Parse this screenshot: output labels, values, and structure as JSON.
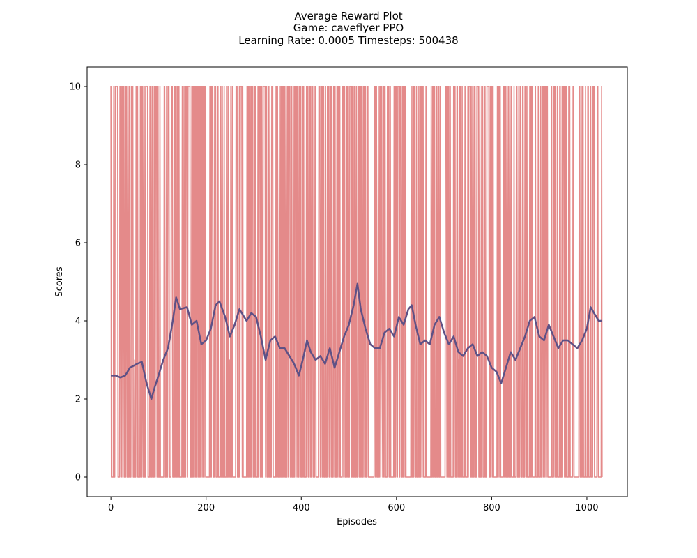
{
  "chart_data": {
    "type": "line",
    "title": "Average Reward Plot",
    "subtitle_lines": [
      "Game: caveflyer PPO",
      "Learning Rate: 0.0005 Timesteps: 500438"
    ],
    "xlabel": "Episodes",
    "ylabel": "Scores",
    "xlim": [
      -50,
      1085
    ],
    "ylim": [
      -0.5,
      10.5
    ],
    "xticks": [
      0,
      200,
      400,
      600,
      800,
      1000
    ],
    "yticks": [
      0,
      2,
      4,
      6,
      8,
      10
    ],
    "grid": false,
    "legend": "none",
    "episodes": 1033,
    "colors": {
      "raw": "#e48a8a",
      "average": "#2f6aaa",
      "overlay": "#6d4a7a"
    },
    "series": [
      {
        "role": "raw-episode-scores",
        "values_description_free": true,
        "levels": [
          0,
          3,
          10
        ],
        "approx_fraction_max": 0.38
      },
      {
        "role": "moving-average",
        "points": [
          [
            0,
            2.6
          ],
          [
            10,
            2.6
          ],
          [
            20,
            2.55
          ],
          [
            30,
            2.6
          ],
          [
            40,
            2.8
          ],
          [
            55,
            2.9
          ],
          [
            65,
            2.95
          ],
          [
            75,
            2.4
          ],
          [
            85,
            2.0
          ],
          [
            92,
            2.3
          ],
          [
            100,
            2.6
          ],
          [
            110,
            3.0
          ],
          [
            120,
            3.3
          ],
          [
            130,
            4.0
          ],
          [
            137,
            4.6
          ],
          [
            145,
            4.3
          ],
          [
            160,
            4.35
          ],
          [
            170,
            3.9
          ],
          [
            180,
            4.0
          ],
          [
            190,
            3.4
          ],
          [
            200,
            3.5
          ],
          [
            210,
            3.8
          ],
          [
            220,
            4.4
          ],
          [
            228,
            4.5
          ],
          [
            240,
            4.1
          ],
          [
            250,
            3.6
          ],
          [
            260,
            3.9
          ],
          [
            270,
            4.3
          ],
          [
            285,
            4.0
          ],
          [
            295,
            4.2
          ],
          [
            305,
            4.1
          ],
          [
            315,
            3.6
          ],
          [
            325,
            3.0
          ],
          [
            335,
            3.5
          ],
          [
            345,
            3.6
          ],
          [
            355,
            3.3
          ],
          [
            365,
            3.3
          ],
          [
            375,
            3.1
          ],
          [
            385,
            2.9
          ],
          [
            395,
            2.6
          ],
          [
            405,
            3.1
          ],
          [
            412,
            3.5
          ],
          [
            420,
            3.2
          ],
          [
            430,
            3.0
          ],
          [
            440,
            3.1
          ],
          [
            450,
            2.9
          ],
          [
            460,
            3.3
          ],
          [
            470,
            2.8
          ],
          [
            480,
            3.2
          ],
          [
            490,
            3.6
          ],
          [
            500,
            3.9
          ],
          [
            510,
            4.4
          ],
          [
            518,
            4.95
          ],
          [
            525,
            4.3
          ],
          [
            535,
            3.8
          ],
          [
            545,
            3.4
          ],
          [
            555,
            3.3
          ],
          [
            565,
            3.3
          ],
          [
            575,
            3.7
          ],
          [
            585,
            3.8
          ],
          [
            595,
            3.6
          ],
          [
            605,
            4.1
          ],
          [
            615,
            3.9
          ],
          [
            625,
            4.3
          ],
          [
            632,
            4.4
          ],
          [
            640,
            3.9
          ],
          [
            650,
            3.4
          ],
          [
            660,
            3.5
          ],
          [
            670,
            3.4
          ],
          [
            680,
            3.9
          ],
          [
            690,
            4.1
          ],
          [
            700,
            3.7
          ],
          [
            710,
            3.4
          ],
          [
            720,
            3.6
          ],
          [
            730,
            3.2
          ],
          [
            740,
            3.1
          ],
          [
            750,
            3.3
          ],
          [
            760,
            3.4
          ],
          [
            770,
            3.1
          ],
          [
            780,
            3.2
          ],
          [
            790,
            3.1
          ],
          [
            800,
            2.8
          ],
          [
            810,
            2.7
          ],
          [
            820,
            2.4
          ],
          [
            830,
            2.8
          ],
          [
            840,
            3.2
          ],
          [
            850,
            3.0
          ],
          [
            860,
            3.3
          ],
          [
            870,
            3.6
          ],
          [
            880,
            4.0
          ],
          [
            890,
            4.1
          ],
          [
            900,
            3.6
          ],
          [
            910,
            3.5
          ],
          [
            920,
            3.9
          ],
          [
            930,
            3.6
          ],
          [
            940,
            3.3
          ],
          [
            950,
            3.5
          ],
          [
            960,
            3.5
          ],
          [
            970,
            3.4
          ],
          [
            980,
            3.3
          ],
          [
            990,
            3.5
          ],
          [
            1000,
            3.8
          ],
          [
            1008,
            4.35
          ],
          [
            1015,
            4.2
          ],
          [
            1025,
            4.0
          ],
          [
            1032,
            4.0
          ]
        ]
      }
    ]
  }
}
